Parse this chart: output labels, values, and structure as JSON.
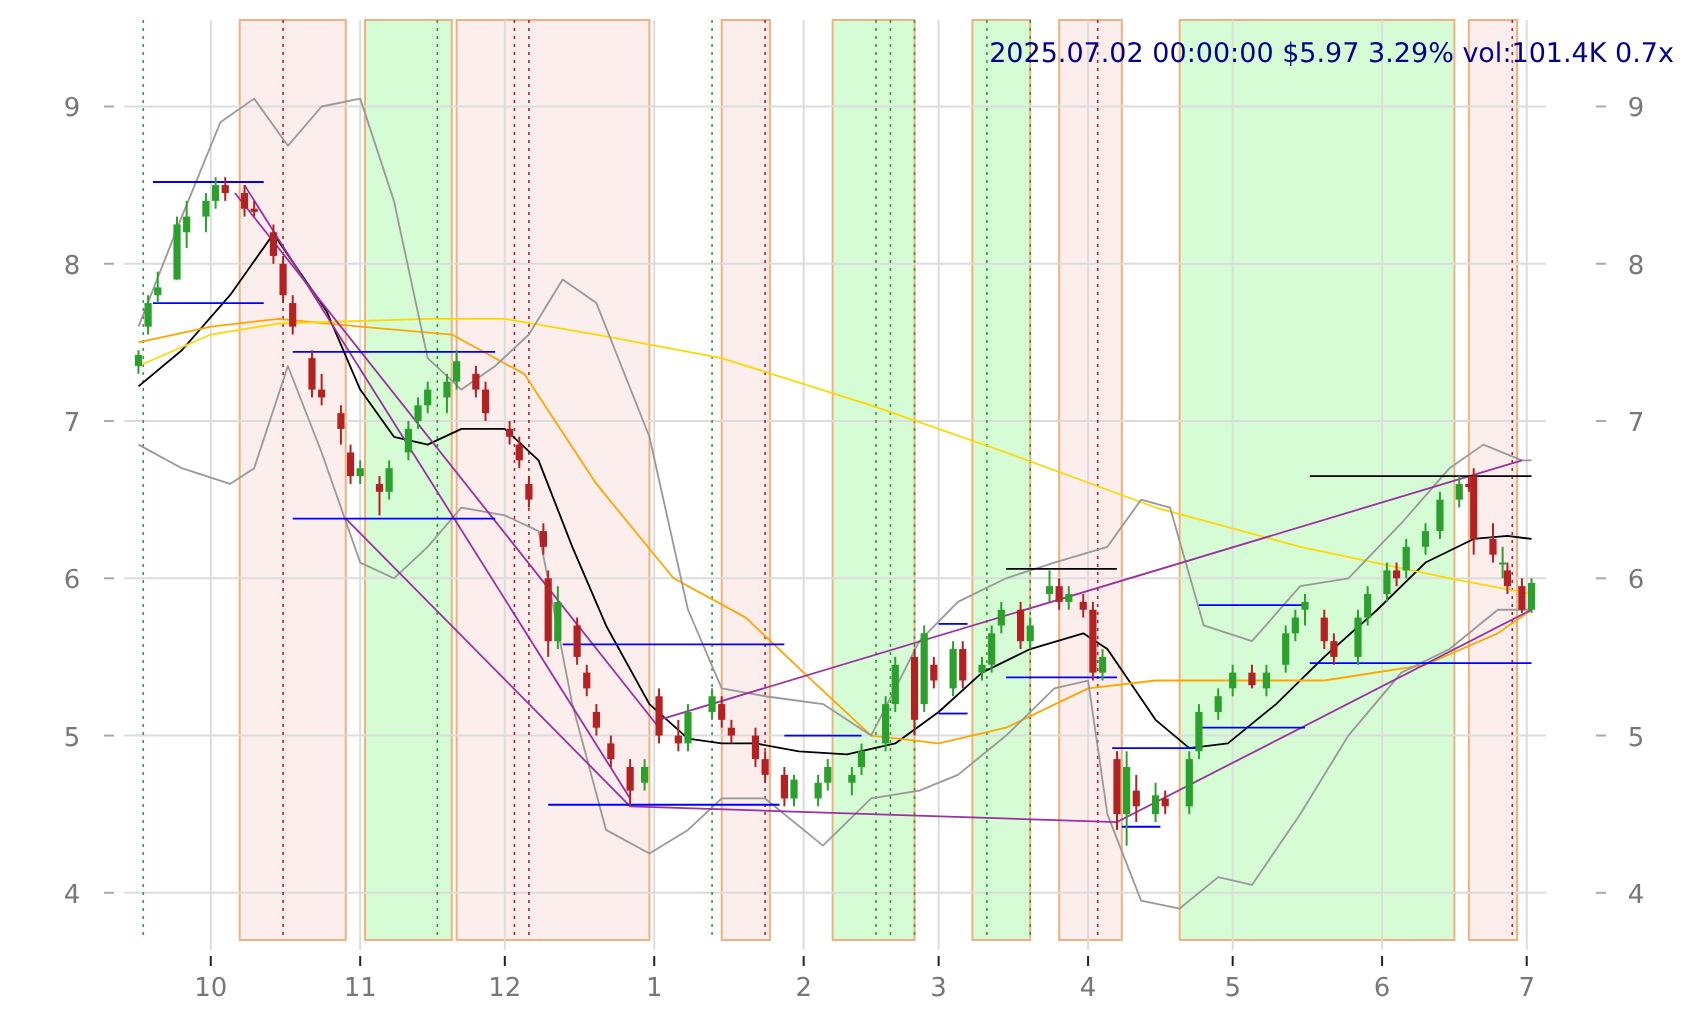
{
  "chart_data": {
    "type": "candlestick",
    "title": "2025.07.02 00:00:00 $5.97 3.29% vol:101.4K 0.7x",
    "x": [
      "2024-09-16",
      "2024-09-18",
      "2024-09-20",
      "2024-09-24",
      "2024-09-26",
      "2024-09-30",
      "2024-10-02",
      "2024-10-04",
      "2024-10-08",
      "2024-10-10",
      "2024-10-14",
      "2024-10-16",
      "2024-10-18",
      "2024-10-22",
      "2024-10-24",
      "2024-10-28",
      "2024-10-30",
      "2024-11-01",
      "2024-11-05",
      "2024-11-07",
      "2024-11-11",
      "2024-11-13",
      "2024-11-15",
      "2024-11-19",
      "2024-11-21",
      "2024-11-25",
      "2024-11-27",
      "2024-12-02",
      "2024-12-04",
      "2024-12-06",
      "2024-12-09",
      "2024-12-10",
      "2024-12-12",
      "2024-12-16",
      "2024-12-18",
      "2024-12-20",
      "2024-12-23",
      "2024-12-27",
      "2024-12-30",
      "2025-01-02",
      "2025-01-06",
      "2025-01-08",
      "2025-01-13",
      "2025-01-15",
      "2025-01-17",
      "2025-01-22",
      "2025-01-24",
      "2025-01-28",
      "2025-01-30",
      "2025-02-04",
      "2025-02-06",
      "2025-02-11",
      "2025-02-13",
      "2025-02-18",
      "2025-02-20",
      "2025-02-24",
      "2025-02-26",
      "2025-02-28",
      "2025-03-04",
      "2025-03-06",
      "2025-03-10",
      "2025-03-12",
      "2025-03-14",
      "2025-03-18",
      "2025-03-20",
      "2025-03-24",
      "2025-03-26",
      "2025-03-28",
      "2025-03-31",
      "2025-04-02",
      "2025-04-04",
      "2025-04-07",
      "2025-04-09",
      "2025-04-11",
      "2025-04-15",
      "2025-04-17",
      "2025-04-22",
      "2025-04-24",
      "2025-04-28",
      "2025-05-01",
      "2025-05-05",
      "2025-05-08",
      "2025-05-12",
      "2025-05-14",
      "2025-05-16",
      "2025-05-20",
      "2025-05-22",
      "2025-05-27",
      "2025-05-29",
      "2025-06-02",
      "2025-06-04",
      "2025-06-06",
      "2025-06-10",
      "2025-06-13",
      "2025-06-17",
      "2025-06-19",
      "2025-06-20",
      "2025-06-24",
      "2025-06-26",
      "2025-06-27",
      "2025-06-30",
      "2025-07-02"
    ],
    "ohlc": [
      [
        7.35,
        7.45,
        7.3,
        7.42
      ],
      [
        7.6,
        7.8,
        7.55,
        7.75
      ],
      [
        7.8,
        7.95,
        7.75,
        7.85
      ],
      [
        7.9,
        8.3,
        7.9,
        8.25
      ],
      [
        8.2,
        8.4,
        8.1,
        8.3
      ],
      [
        8.3,
        8.45,
        8.2,
        8.4
      ],
      [
        8.4,
        8.55,
        8.35,
        8.5
      ],
      [
        8.5,
        8.55,
        8.4,
        8.45
      ],
      [
        8.45,
        8.5,
        8.3,
        8.35
      ],
      [
        8.35,
        8.4,
        8.3,
        8.33
      ],
      [
        8.2,
        8.25,
        8.0,
        8.05
      ],
      [
        8.0,
        8.05,
        7.75,
        7.8
      ],
      [
        7.75,
        7.8,
        7.55,
        7.6
      ],
      [
        7.4,
        7.45,
        7.15,
        7.2
      ],
      [
        7.2,
        7.3,
        7.1,
        7.15
      ],
      [
        7.05,
        7.1,
        6.85,
        6.95
      ],
      [
        6.8,
        6.85,
        6.6,
        6.65
      ],
      [
        6.65,
        6.75,
        6.6,
        6.7
      ],
      [
        6.6,
        6.65,
        6.4,
        6.55
      ],
      [
        6.55,
        6.75,
        6.5,
        6.7
      ],
      [
        6.8,
        7.0,
        6.75,
        6.95
      ],
      [
        7.0,
        7.15,
        6.95,
        7.1
      ],
      [
        7.1,
        7.25,
        7.05,
        7.2
      ],
      [
        7.15,
        7.3,
        7.05,
        7.25
      ],
      [
        7.25,
        7.45,
        7.2,
        7.38
      ],
      [
        7.3,
        7.35,
        7.15,
        7.2
      ],
      [
        7.2,
        7.25,
        7.0,
        7.05
      ],
      [
        6.95,
        7.0,
        6.85,
        6.9
      ],
      [
        6.85,
        6.9,
        6.7,
        6.75
      ],
      [
        6.6,
        6.65,
        6.45,
        6.5
      ],
      [
        6.3,
        6.35,
        6.15,
        6.2
      ],
      [
        6.0,
        6.05,
        5.5,
        5.6
      ],
      [
        5.6,
        5.95,
        5.55,
        5.85
      ],
      [
        5.7,
        5.75,
        5.45,
        5.5
      ],
      [
        5.4,
        5.45,
        5.25,
        5.3
      ],
      [
        5.15,
        5.2,
        5.0,
        5.05
      ],
      [
        4.95,
        5.0,
        4.8,
        4.85
      ],
      [
        4.8,
        4.85,
        4.55,
        4.65
      ],
      [
        4.7,
        4.85,
        4.65,
        4.8
      ],
      [
        5.25,
        5.3,
        4.95,
        5.0
      ],
      [
        5.0,
        5.1,
        4.9,
        4.95
      ],
      [
        4.95,
        5.2,
        4.9,
        5.15
      ],
      [
        5.15,
        5.3,
        5.1,
        5.25
      ],
      [
        5.2,
        5.25,
        5.05,
        5.1
      ],
      [
        5.05,
        5.1,
        4.95,
        5.0
      ],
      [
        5.0,
        5.05,
        4.8,
        4.85
      ],
      [
        4.85,
        4.9,
        4.7,
        4.75
      ],
      [
        4.75,
        4.8,
        4.55,
        4.6
      ],
      [
        4.6,
        4.75,
        4.55,
        4.72
      ],
      [
        4.6,
        4.75,
        4.55,
        4.7
      ],
      [
        4.7,
        4.85,
        4.65,
        4.8
      ],
      [
        4.7,
        4.8,
        4.62,
        4.75
      ],
      [
        4.8,
        4.95,
        4.75,
        4.9
      ],
      [
        4.95,
        5.25,
        4.9,
        5.2
      ],
      [
        5.2,
        5.5,
        5.15,
        5.45
      ],
      [
        5.5,
        5.55,
        5.0,
        5.1
      ],
      [
        5.2,
        5.7,
        5.15,
        5.65
      ],
      [
        5.45,
        5.5,
        5.3,
        5.35
      ],
      [
        5.3,
        5.6,
        5.25,
        5.55
      ],
      [
        5.55,
        5.6,
        5.3,
        5.35
      ],
      [
        5.4,
        5.5,
        5.35,
        5.45
      ],
      [
        5.45,
        5.7,
        5.4,
        5.65
      ],
      [
        5.7,
        5.85,
        5.65,
        5.8
      ],
      [
        5.8,
        5.85,
        5.55,
        5.6
      ],
      [
        5.6,
        5.75,
        5.55,
        5.7
      ],
      [
        5.9,
        6.05,
        5.85,
        5.95
      ],
      [
        5.95,
        6.0,
        5.8,
        5.85
      ],
      [
        5.85,
        5.95,
        5.8,
        5.9
      ],
      [
        5.85,
        5.9,
        5.75,
        5.8
      ],
      [
        5.8,
        5.85,
        5.35,
        5.4
      ],
      [
        5.4,
        5.55,
        5.35,
        5.5
      ],
      [
        4.85,
        4.9,
        4.4,
        4.5
      ],
      [
        4.5,
        4.9,
        4.3,
        4.8
      ],
      [
        4.65,
        4.75,
        4.45,
        4.55
      ],
      [
        4.5,
        4.7,
        4.45,
        4.62
      ],
      [
        4.6,
        4.65,
        4.5,
        4.55
      ],
      [
        4.55,
        4.9,
        4.5,
        4.85
      ],
      [
        4.9,
        5.2,
        4.85,
        5.15
      ],
      [
        5.15,
        5.3,
        5.1,
        5.25
      ],
      [
        5.3,
        5.45,
        5.25,
        5.4
      ],
      [
        5.4,
        5.45,
        5.3,
        5.32
      ],
      [
        5.3,
        5.45,
        5.25,
        5.4
      ],
      [
        5.45,
        5.7,
        5.4,
        5.65
      ],
      [
        5.65,
        5.8,
        5.6,
        5.75
      ],
      [
        5.8,
        5.9,
        5.7,
        5.85
      ],
      [
        5.75,
        5.8,
        5.55,
        5.6
      ],
      [
        5.6,
        5.65,
        5.45,
        5.5
      ],
      [
        5.5,
        5.8,
        5.45,
        5.75
      ],
      [
        5.75,
        5.95,
        5.7,
        5.9
      ],
      [
        5.9,
        6.1,
        5.85,
        6.05
      ],
      [
        6.05,
        6.1,
        5.95,
        6.0
      ],
      [
        6.05,
        6.25,
        6.0,
        6.2
      ],
      [
        6.2,
        6.35,
        6.15,
        6.3
      ],
      [
        6.3,
        6.55,
        6.25,
        6.5
      ],
      [
        6.5,
        6.65,
        6.45,
        6.6
      ],
      [
        6.6,
        6.65,
        6.55,
        6.58
      ],
      [
        6.65,
        6.7,
        6.15,
        6.25
      ],
      [
        6.25,
        6.35,
        6.1,
        6.15
      ],
      [
        6.1,
        6.2,
        6.0,
        6.1
      ],
      [
        6.05,
        6.1,
        5.9,
        5.95
      ],
      [
        5.95,
        6.0,
        5.78,
        5.8
      ],
      [
        5.8,
        6.0,
        5.78,
        5.97
      ]
    ],
    "series": [
      {
        "type": "line",
        "color": "#000000",
        "x": [
          "2024-09-16",
          "2024-09-25",
          "2024-10-05",
          "2024-10-14",
          "2024-10-25",
          "2024-11-01",
          "2024-11-08",
          "2024-11-15",
          "2024-11-22",
          "2024-12-01",
          "2024-12-08",
          "2024-12-15",
          "2024-12-22",
          "2024-12-31",
          "2025-01-08",
          "2025-01-15",
          "2025-01-22",
          "2025-01-31",
          "2025-02-10",
          "2025-02-20",
          "2025-03-01",
          "2025-03-10",
          "2025-03-20",
          "2025-03-31",
          "2025-04-05",
          "2025-04-15",
          "2025-04-22",
          "2025-04-30",
          "2025-05-10",
          "2025-05-20",
          "2025-05-31",
          "2025-06-10",
          "2025-06-20",
          "2025-06-27",
          "2025-07-02"
        ],
        "values": [
          7.22,
          7.45,
          7.8,
          8.19,
          7.7,
          7.2,
          6.9,
          6.85,
          6.95,
          6.95,
          6.75,
          6.2,
          5.7,
          5.2,
          4.98,
          4.95,
          4.95,
          4.9,
          4.88,
          4.95,
          5.15,
          5.4,
          5.55,
          5.65,
          5.55,
          5.1,
          4.92,
          4.95,
          5.2,
          5.5,
          5.8,
          6.1,
          6.25,
          6.27,
          6.25
        ]
      },
      {
        "type": "line",
        "color": "#ffa500",
        "x": [
          "2024-09-16",
          "2024-10-01",
          "2024-10-15",
          "2024-11-01",
          "2024-11-20",
          "2024-12-05",
          "2024-12-20",
          "2025-01-05",
          "2025-01-20",
          "2025-02-01",
          "2025-02-15",
          "2025-03-01",
          "2025-03-15",
          "2025-04-01",
          "2025-04-15",
          "2025-05-01",
          "2025-05-20",
          "2025-06-10",
          "2025-06-25",
          "2025-07-02"
        ],
        "values": [
          7.5,
          7.6,
          7.65,
          7.6,
          7.55,
          7.3,
          6.6,
          6.0,
          5.75,
          5.4,
          5.0,
          4.95,
          5.05,
          5.3,
          5.35,
          5.35,
          5.35,
          5.45,
          5.65,
          5.8
        ]
      },
      {
        "type": "line",
        "color": "#ffd700",
        "x": [
          "2024-09-16",
          "2024-10-01",
          "2024-10-15",
          "2024-11-15",
          "2024-12-01",
          "2024-12-20",
          "2025-01-15",
          "2025-02-15",
          "2025-03-15",
          "2025-04-15",
          "2025-05-15",
          "2025-06-15",
          "2025-07-02"
        ],
        "values": [
          7.35,
          7.55,
          7.62,
          7.65,
          7.65,
          7.55,
          7.4,
          7.1,
          6.8,
          6.45,
          6.2,
          6.0,
          5.9
        ]
      },
      {
        "type": "line",
        "color": "#999999",
        "x": [
          "2024-09-16",
          "2024-09-25",
          "2024-10-03",
          "2024-10-10",
          "2024-10-17",
          "2024-10-24",
          "2024-11-01",
          "2024-11-08",
          "2024-11-15",
          "2024-11-22",
          "2024-11-29",
          "2024-12-06",
          "2024-12-13",
          "2024-12-20",
          "2024-12-31",
          "2025-01-08",
          "2025-01-15",
          "2025-01-24",
          "2025-02-05",
          "2025-02-15",
          "2025-02-25",
          "2025-03-05",
          "2025-03-15",
          "2025-03-25",
          "2025-04-05",
          "2025-04-12",
          "2025-04-18",
          "2025-04-25",
          "2025-05-05",
          "2025-05-15",
          "2025-05-25",
          "2025-06-05",
          "2025-06-15",
          "2025-06-22",
          "2025-06-30",
          "2025-07-02"
        ],
        "values": [
          7.6,
          8.3,
          8.9,
          9.05,
          8.75,
          9.0,
          9.05,
          8.4,
          7.4,
          7.2,
          7.35,
          7.55,
          7.9,
          7.75,
          6.9,
          5.8,
          5.3,
          5.25,
          5.2,
          5.0,
          5.6,
          5.85,
          6.0,
          6.1,
          6.2,
          6.5,
          6.45,
          5.7,
          5.6,
          5.95,
          6.0,
          6.35,
          6.7,
          6.85,
          6.75,
          6.75
        ]
      },
      {
        "type": "line",
        "color": "#999999",
        "x": [
          "2024-09-16",
          "2024-09-25",
          "2024-10-05",
          "2024-10-10",
          "2024-10-17",
          "2024-10-24",
          "2024-11-01",
          "2024-11-08",
          "2024-11-15",
          "2024-11-22",
          "2024-12-01",
          "2024-12-08",
          "2024-12-15",
          "2024-12-22",
          "2024-12-31",
          "2025-01-08",
          "2025-01-15",
          "2025-01-24",
          "2025-02-05",
          "2025-02-15",
          "2025-02-25",
          "2025-03-05",
          "2025-03-15",
          "2025-03-25",
          "2025-04-01",
          "2025-04-05",
          "2025-04-12",
          "2025-04-20",
          "2025-04-28",
          "2025-05-05",
          "2025-05-15",
          "2025-05-25",
          "2025-06-05",
          "2025-06-15",
          "2025-06-25",
          "2025-07-02"
        ],
        "values": [
          6.85,
          6.7,
          6.6,
          6.7,
          7.35,
          6.8,
          6.1,
          6.0,
          6.2,
          6.45,
          6.4,
          6.3,
          5.2,
          4.4,
          4.25,
          4.4,
          4.6,
          4.6,
          4.3,
          4.6,
          4.65,
          4.75,
          5.0,
          5.3,
          5.35,
          4.5,
          3.95,
          3.9,
          4.1,
          4.05,
          4.5,
          5.0,
          5.4,
          5.55,
          5.8,
          5.8
        ]
      },
      {
        "type": "line",
        "color": "#9b30a0",
        "x": [
          "2024-10-08",
          "2024-12-27"
        ],
        "values": [
          8.5,
          4.6
        ]
      },
      {
        "type": "line",
        "color": "#9b30a0",
        "x": [
          "2024-10-06",
          "2025-01-02"
        ],
        "values": [
          8.45,
          5.05
        ]
      },
      {
        "type": "line",
        "color": "#9b30a0",
        "x": [
          "2024-10-29",
          "2024-12-27"
        ],
        "values": [
          6.38,
          4.55
        ]
      },
      {
        "type": "line",
        "color": "#9b30a0",
        "x": [
          "2025-01-02",
          "2025-06-30"
        ],
        "values": [
          5.1,
          6.75
        ]
      },
      {
        "type": "line",
        "color": "#9b30a0",
        "x": [
          "2024-12-27",
          "2025-04-07"
        ],
        "values": [
          4.55,
          4.45
        ]
      },
      {
        "type": "line",
        "color": "#9b30a0",
        "x": [
          "2025-04-07",
          "2025-07-02"
        ],
        "values": [
          4.45,
          5.8
        ]
      },
      {
        "type": "line",
        "color": "#0000ff",
        "x": [
          "2024-09-19",
          "2024-10-12"
        ],
        "values": [
          8.52,
          8.52
        ]
      },
      {
        "type": "line",
        "color": "#0000ff",
        "x": [
          "2024-09-19",
          "2024-10-12"
        ],
        "values": [
          7.75,
          7.75
        ]
      },
      {
        "type": "line",
        "color": "#0000ff",
        "x": [
          "2024-10-18",
          "2024-11-29"
        ],
        "values": [
          7.44,
          7.44
        ]
      },
      {
        "type": "line",
        "color": "#0000ff",
        "x": [
          "2024-10-18",
          "2024-11-29"
        ],
        "values": [
          6.38,
          6.38
        ]
      },
      {
        "type": "line",
        "color": "#0000ff",
        "x": [
          "2024-12-13",
          "2025-01-28"
        ],
        "values": [
          5.58,
          5.58
        ]
      },
      {
        "type": "line",
        "color": "#0000ff",
        "x": [
          "2024-12-10",
          "2025-01-27"
        ],
        "values": [
          4.56,
          4.56
        ]
      },
      {
        "type": "line",
        "color": "#0000ff",
        "x": [
          "2025-01-28",
          "2025-02-13"
        ],
        "values": [
          5.0,
          5.0
        ]
      },
      {
        "type": "line",
        "color": "#0000ff",
        "x": [
          "2025-03-01",
          "2025-03-07"
        ],
        "values": [
          5.71,
          5.71
        ]
      },
      {
        "type": "line",
        "color": "#0000ff",
        "x": [
          "2025-03-01",
          "2025-03-07"
        ],
        "values": [
          5.14,
          5.14
        ]
      },
      {
        "type": "line",
        "color": "#0000ff",
        "x": [
          "2025-03-15",
          "2025-04-07"
        ],
        "values": [
          5.37,
          5.37
        ]
      },
      {
        "type": "line",
        "color": "#0000ff",
        "x": [
          "2025-04-06",
          "2025-04-24"
        ],
        "values": [
          4.92,
          4.92
        ]
      },
      {
        "type": "line",
        "color": "#0000ff",
        "x": [
          "2025-04-08",
          "2025-04-16"
        ],
        "values": [
          4.42,
          4.42
        ]
      },
      {
        "type": "line",
        "color": "#0000ff",
        "x": [
          "2025-04-24",
          "2025-05-16"
        ],
        "values": [
          5.83,
          5.83
        ]
      },
      {
        "type": "line",
        "color": "#0000ff",
        "x": [
          "2025-04-24",
          "2025-05-16"
        ],
        "values": [
          5.05,
          5.05
        ]
      },
      {
        "type": "line",
        "color": "#0000ff",
        "x": [
          "2025-05-17",
          "2025-07-02"
        ],
        "values": [
          5.46,
          5.46
        ]
      },
      {
        "type": "line",
        "color": "#000000",
        "x": [
          "2025-03-15",
          "2025-04-07"
        ],
        "values": [
          6.06,
          6.06
        ]
      },
      {
        "type": "line",
        "color": "#000000",
        "x": [
          "2025-05-17",
          "2025-07-02"
        ],
        "values": [
          6.65,
          6.65
        ]
      }
    ],
    "bands": [
      {
        "axis": "x",
        "from": "2024-10-07",
        "to": "2024-10-29",
        "color": "#fdeaea"
      },
      {
        "axis": "x",
        "from": "2024-11-02",
        "to": "2024-11-20",
        "color": "#ccfccc"
      },
      {
        "axis": "x",
        "from": "2024-11-21",
        "to": "2024-12-31",
        "color": "#fdeaea"
      },
      {
        "axis": "x",
        "from": "2025-01-15",
        "to": "2025-01-25",
        "color": "#fdeaea"
      },
      {
        "axis": "x",
        "from": "2025-02-07",
        "to": "2025-02-24",
        "color": "#ccfccc"
      },
      {
        "axis": "x",
        "from": "2025-03-08",
        "to": "2025-03-20",
        "color": "#ccfccc"
      },
      {
        "axis": "x",
        "from": "2025-03-26",
        "to": "2025-04-08",
        "color": "#fdeaea"
      },
      {
        "axis": "x",
        "from": "2025-04-20",
        "to": "2025-06-16",
        "color": "#ccfccc"
      },
      {
        "axis": "x",
        "from": "2025-06-19",
        "to": "2025-06-29",
        "color": "#fdeaea"
      }
    ],
    "ref_lines": [
      {
        "axis": "x",
        "value": "2024-09-17",
        "color": "#2ca02c",
        "line_style": "dotted"
      },
      {
        "axis": "x",
        "value": "2024-10-16",
        "color": "#b22222",
        "line_style": "dotted"
      },
      {
        "axis": "x",
        "value": "2024-11-17",
        "color": "#2ca02c",
        "line_style": "dotted"
      },
      {
        "axis": "x",
        "value": "2024-12-03",
        "color": "#b22222",
        "line_style": "dotted"
      },
      {
        "axis": "x",
        "value": "2024-12-06",
        "color": "#b22222",
        "line_style": "dotted"
      },
      {
        "axis": "x",
        "value": "2025-01-13",
        "color": "#2ca02c",
        "line_style": "dotted"
      },
      {
        "axis": "x",
        "value": "2025-01-24",
        "color": "#b22222",
        "line_style": "dotted"
      },
      {
        "axis": "x",
        "value": "2025-02-16",
        "color": "#2ca02c",
        "line_style": "dotted"
      },
      {
        "axis": "x",
        "value": "2025-02-19",
        "color": "#2ca02c",
        "line_style": "dotted"
      },
      {
        "axis": "x",
        "value": "2025-02-24",
        "color": "#2ca02c",
        "line_style": "dotted"
      },
      {
        "axis": "x",
        "value": "2025-03-11",
        "color": "#2ca02c",
        "line_style": "dotted"
      },
      {
        "axis": "x",
        "value": "2025-03-20",
        "color": "#2ca02c",
        "line_style": "dotted"
      },
      {
        "axis": "x",
        "value": "2025-04-03",
        "color": "#b22222",
        "line_style": "dotted"
      },
      {
        "axis": "x",
        "value": "2025-06-28",
        "color": "#b22222",
        "line_style": "dotted"
      }
    ],
    "xlim": [
      "2024-09-13",
      "2025-07-05"
    ],
    "xticks": [
      {
        "value": "2024-10-01",
        "label": "10"
      },
      {
        "value": "2024-11-01",
        "label": "11"
      },
      {
        "value": "2024-12-01",
        "label": "12"
      },
      {
        "value": "2025-01-01",
        "label": "1"
      },
      {
        "value": "2025-02-01",
        "label": "2"
      },
      {
        "value": "2025-03-01",
        "label": "3"
      },
      {
        "value": "2025-04-01",
        "label": "4"
      },
      {
        "value": "2025-05-01",
        "label": "5"
      },
      {
        "value": "2025-06-01",
        "label": "6"
      },
      {
        "value": "2025-07-01",
        "label": "7"
      }
    ],
    "ylim": [
      3.7,
      9.55
    ],
    "yticks": [
      4,
      5,
      6,
      7,
      8,
      9
    ],
    "y2lim": [
      3.7,
      9.55
    ],
    "y2ticks": [
      4,
      5,
      6,
      7,
      8,
      9
    ],
    "grid": true
  }
}
